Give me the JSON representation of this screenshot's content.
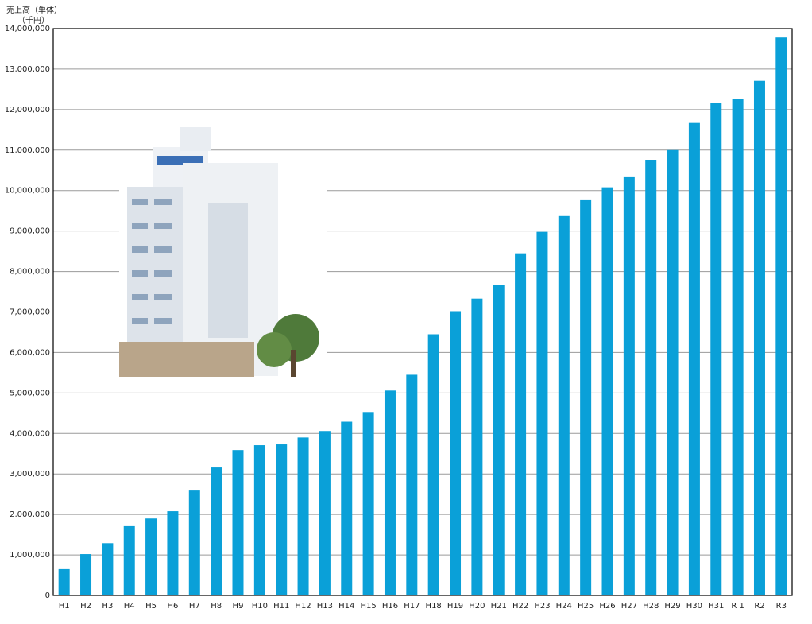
{
  "chart_data": {
    "type": "bar",
    "y_label": "売上高（単体）",
    "y_unit": "（千円）",
    "categories": [
      "H1",
      "H2",
      "H3",
      "H4",
      "H5",
      "H6",
      "H7",
      "H8",
      "H9",
      "H10",
      "H11",
      "H12",
      "H13",
      "H14",
      "H15",
      "H16",
      "H17",
      "H18",
      "H19",
      "H20",
      "H21",
      "H22",
      "H23",
      "H24",
      "H25",
      "H26",
      "H27",
      "H28",
      "H29",
      "H30",
      "H31",
      "R 1",
      "R2",
      "R3"
    ],
    "values": [
      650000,
      1020000,
      1290000,
      1710000,
      1900000,
      2080000,
      2590000,
      3160000,
      3590000,
      3710000,
      3730000,
      3900000,
      4060000,
      4290000,
      4530000,
      5060000,
      5450000,
      6450000,
      7020000,
      7330000,
      7670000,
      8450000,
      8980000,
      9370000,
      9780000,
      10080000,
      10330000,
      10760000,
      11000000,
      11670000,
      12160000,
      12270000,
      12710000,
      13780000
    ],
    "color": "#0aa0d8",
    "ylim": [
      0,
      14000000
    ],
    "yticks": [
      0,
      {
        "value": 1000000,
        "label": "1,000,000"
      },
      {
        "value": 2000000,
        "label": "2,000,000"
      },
      {
        "value": 3000000,
        "label": "3,000,000"
      },
      {
        "value": 4000000,
        "label": "4,000,000"
      },
      {
        "value": 5000000,
        "label": "5,000,000"
      },
      {
        "value": 6000000,
        "label": "6,000,000"
      },
      {
        "value": 7000000,
        "label": "7,000,000"
      },
      {
        "value": 8000000,
        "label": "8,000,000"
      },
      {
        "value": 9000000,
        "label": "9,000,000"
      },
      {
        "value": 10000000,
        "label": "10,000,000"
      },
      {
        "value": 11000000,
        "label": "11,000,000"
      },
      {
        "value": 12000000,
        "label": "12,000,000"
      },
      {
        "value": 13000000,
        "label": "13,000,000"
      },
      {
        "value": 14000000,
        "label": "14,000,000"
      }
    ],
    "grid": true
  }
}
